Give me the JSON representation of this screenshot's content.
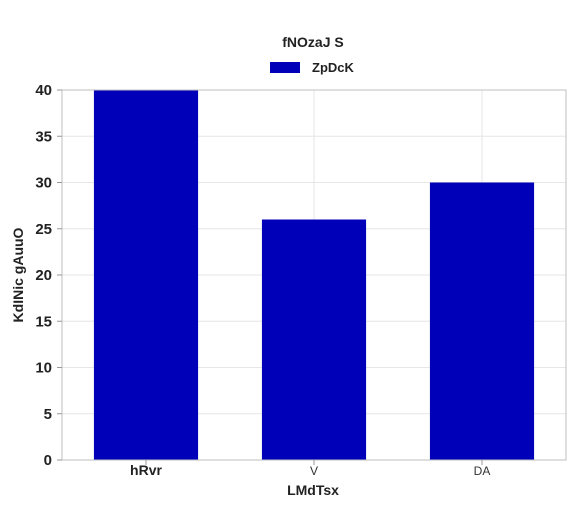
{
  "chart_data": {
    "type": "bar",
    "title": "fNOzaJ S",
    "xlabel": "LMdTsx",
    "ylabel": "KdINic gAuuO",
    "categories": [
      "hRvr",
      "V",
      "DA"
    ],
    "category_bold": [
      true,
      false,
      false
    ],
    "series": [
      {
        "name": "ZpDcK",
        "values": [
          40,
          26,
          30
        ],
        "color": "#0000b8"
      }
    ],
    "ylim": [
      0,
      40
    ],
    "yticks": [
      0,
      5,
      10,
      15,
      20,
      25,
      30,
      35,
      40
    ],
    "grid": true,
    "legend_position": "top-center"
  }
}
